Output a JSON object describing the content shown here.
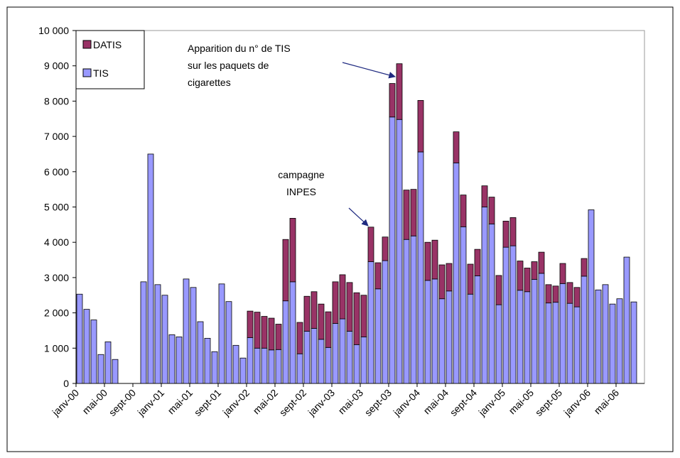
{
  "chart_data": {
    "type": "stacked_bar",
    "categories": [
      "janv-00",
      null,
      null,
      null,
      "mai-00",
      null,
      null,
      null,
      "sept-00",
      null,
      null,
      null,
      "janv-01",
      null,
      null,
      null,
      "mai-01",
      null,
      null,
      null,
      "sept-01",
      null,
      null,
      null,
      "janv-02",
      null,
      null,
      null,
      "mai-02",
      null,
      null,
      null,
      "sept-02",
      null,
      null,
      null,
      "janv-03",
      null,
      null,
      null,
      "mai-03",
      null,
      null,
      null,
      "sept-03",
      null,
      null,
      null,
      "janv-04",
      null,
      null,
      null,
      "mai-04",
      null,
      null,
      null,
      "sept-04",
      null,
      null,
      null,
      "janv-05",
      null,
      null,
      null,
      "mai-05",
      null,
      null,
      null,
      "sept-05",
      null,
      null,
      null,
      "janv-06",
      null,
      null,
      null,
      "mai-06",
      null,
      null
    ],
    "series": [
      {
        "name": "TIS",
        "color": "#9999ff",
        "values": [
          2530,
          2100,
          1800,
          820,
          1180,
          680,
          null,
          null,
          null,
          2880,
          6500,
          2800,
          2500,
          1380,
          1320,
          2960,
          2720,
          1750,
          1280,
          900,
          2820,
          2320,
          1080,
          720,
          1300,
          1000,
          1000,
          950,
          960,
          2340,
          2880,
          840,
          1480,
          1560,
          1250,
          1020,
          1700,
          1830,
          1480,
          1100,
          1320,
          3450,
          2680,
          3480,
          7550,
          7480,
          4080,
          4180,
          6560,
          2920,
          2960,
          2400,
          2620,
          6250,
          4440,
          2530,
          3050,
          5000,
          4520,
          2230,
          3860,
          3900,
          2640,
          2600,
          2950,
          3120,
          2280,
          2300,
          2830,
          2270,
          2170,
          3040,
          4920,
          2650,
          2800,
          2250,
          2400,
          3580,
          2310
        ]
      },
      {
        "name": "DATIS",
        "color": "#993366",
        "values": [
          null,
          null,
          null,
          null,
          null,
          null,
          null,
          null,
          null,
          null,
          null,
          null,
          null,
          null,
          null,
          null,
          null,
          null,
          null,
          null,
          null,
          null,
          null,
          null,
          750,
          1020,
          900,
          900,
          720,
          1740,
          1800,
          890,
          990,
          1040,
          1000,
          1010,
          1180,
          1250,
          1380,
          1470,
          1180,
          980,
          740,
          670,
          950,
          1580,
          1400,
          1320,
          1460,
          1080,
          1100,
          960,
          780,
          880,
          900,
          850,
          750,
          600,
          760,
          830,
          740,
          800,
          830,
          670,
          500,
          600,
          520,
          460,
          570,
          590,
          550,
          500,
          null,
          null,
          null,
          null,
          null,
          null,
          null
        ]
      }
    ],
    "ylim": [
      0,
      10000
    ],
    "yticks": [
      0,
      {
        "value": 1000,
        "label": "1 000"
      },
      {
        "value": 2000,
        "label": "2 000"
      },
      {
        "value": 3000,
        "label": "3 000"
      },
      {
        "value": 4000,
        "label": "4 000"
      },
      {
        "value": 5000,
        "label": "5 000"
      },
      {
        "value": 6000,
        "label": "6 000"
      },
      {
        "value": 7000,
        "label": "7 000"
      },
      {
        "value": 8000,
        "label": "8 000"
      },
      {
        "value": 9000,
        "label": "9 000"
      },
      {
        "value": 10000,
        "label": "10 000"
      }
    ],
    "legend": "top-left",
    "annotations": [
      {
        "lines": [
          "Apparition du n° de TIS",
          "sur les paquets de",
          "cigarettes"
        ]
      },
      {
        "lines": [
          "campagne",
          "INPES"
        ]
      }
    ]
  }
}
